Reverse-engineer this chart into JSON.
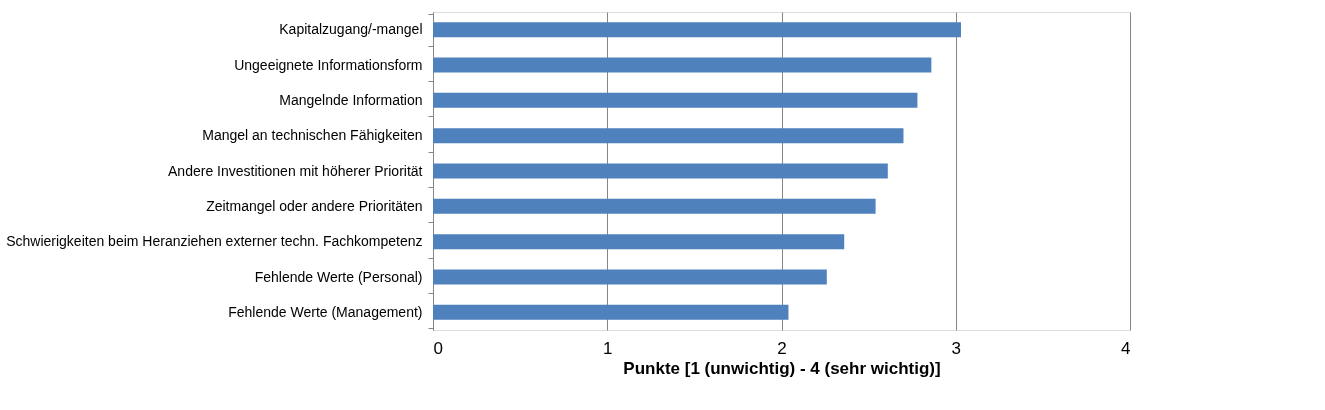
{
  "chart_data": {
    "type": "bar",
    "orientation": "horizontal",
    "xlabel": "Punkte [1 (unwichtig) - 4 (sehr wichtig)]",
    "categories": [
      "Kapitalzugang/-mangel",
      "Ungeeignete Informationsform",
      "Mangelnde  Information",
      "Mangel an technischen Fähigkeiten",
      "Andere Investitionen mit höherer Priorität",
      "Zeitmangel oder andere Prioritäten",
      "Schwierigkeiten beim Heranziehen externer techn. Fachkompetenz",
      "Fehlende Werte (Personal)",
      "Fehlende Werte (Management)"
    ],
    "values": [
      3.03,
      2.86,
      2.78,
      2.7,
      2.61,
      2.54,
      2.36,
      2.26,
      2.04
    ],
    "color": "#4f81bd",
    "xlim": [
      0,
      4
    ],
    "xticks": [
      0,
      1,
      2,
      3,
      4
    ],
    "grid": "x"
  }
}
